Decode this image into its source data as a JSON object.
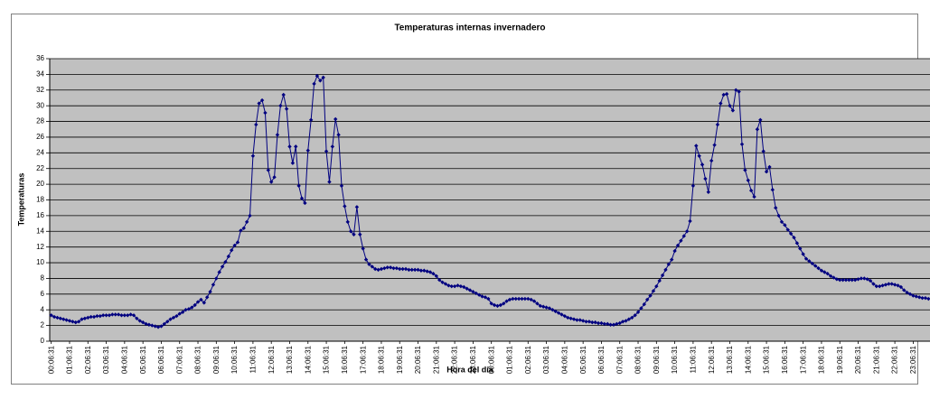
{
  "chart_data": {
    "type": "line",
    "title": "Temperaturas internas invernadero",
    "x_label": "Hora del día",
    "y_label": "Temperaturas",
    "color": "#000080",
    "plot_background": "#c0c0c0",
    "grid": true,
    "ylim": [
      0,
      36
    ],
    "yticks": [
      0,
      2,
      4,
      6,
      8,
      10,
      12,
      14,
      16,
      18,
      20,
      22,
      24,
      26,
      28,
      30,
      32,
      34,
      36
    ],
    "categories": [
      "00:06:31",
      null,
      null,
      null,
      null,
      null,
      "01:06:31",
      null,
      null,
      null,
      null,
      null,
      "02:06:31",
      null,
      null,
      null,
      null,
      null,
      "03:06:31",
      null,
      null,
      null,
      null,
      null,
      "04:06:31",
      null,
      null,
      null,
      null,
      null,
      "05:06:31",
      null,
      null,
      null,
      null,
      null,
      "06:06:31",
      null,
      null,
      null,
      null,
      null,
      "07:06:31",
      null,
      null,
      null,
      null,
      null,
      "08:06:31",
      null,
      null,
      null,
      null,
      null,
      "09:06:31",
      null,
      null,
      null,
      null,
      null,
      "10:06:31",
      null,
      null,
      null,
      null,
      null,
      "11:06:31",
      null,
      null,
      null,
      null,
      null,
      "12:06:31",
      null,
      null,
      null,
      null,
      null,
      "13:06:31",
      null,
      null,
      null,
      null,
      null,
      "14:06:31",
      null,
      null,
      null,
      null,
      null,
      "15:06:31",
      null,
      null,
      null,
      null,
      null,
      "16:06:31",
      null,
      null,
      null,
      null,
      null,
      "17:06:31",
      null,
      null,
      null,
      null,
      null,
      "18:06:31",
      null,
      null,
      null,
      null,
      null,
      "19:06:31",
      null,
      null,
      null,
      null,
      null,
      "20:06:31",
      null,
      null,
      null,
      null,
      null,
      "21:06:31",
      null,
      null,
      null,
      null,
      null,
      "22:06:31",
      null,
      null,
      null,
      null,
      null,
      "23:06:31",
      null,
      null,
      null,
      null,
      null,
      "00:06:31",
      null,
      null,
      null,
      null,
      null,
      "01:06:31",
      null,
      null,
      null,
      null,
      null,
      "02:06:31",
      null,
      null,
      null,
      null,
      null,
      "03:06:31",
      null,
      null,
      null,
      null,
      null,
      "04:06:31",
      null,
      null,
      null,
      null,
      null,
      "05:06:31",
      null,
      null,
      null,
      null,
      null,
      "06:06:31",
      null,
      null,
      null,
      null,
      null,
      "07:06:31",
      null,
      null,
      null,
      null,
      null,
      "08:06:31",
      null,
      null,
      null,
      null,
      null,
      "09:06:31",
      null,
      null,
      null,
      null,
      null,
      "10:06:31",
      null,
      null,
      null,
      null,
      null,
      "11:06:31",
      null,
      null,
      null,
      null,
      null,
      "12:06:31",
      null,
      null,
      null,
      null,
      null,
      "13:06:31",
      null,
      null,
      null,
      null,
      null,
      "14:06:31",
      null,
      null,
      null,
      null,
      null,
      "15:06:31",
      null,
      null,
      null,
      null,
      null,
      "16:06:31",
      null,
      null,
      null,
      null,
      null,
      "17:06:31",
      null,
      null,
      null,
      null,
      null,
      "18:06:31",
      null,
      null,
      null,
      null,
      null,
      "19:06:31",
      null,
      null,
      null,
      null,
      null,
      "20:06:31",
      null,
      null,
      null,
      null,
      null,
      "21:06:31",
      null,
      null,
      null,
      null,
      null,
      "22:06:31",
      null,
      null,
      null,
      null,
      null,
      "23:06:31",
      null,
      null,
      null,
      null,
      null
    ],
    "values": [
      3.3,
      3.1,
      3.0,
      2.9,
      2.8,
      2.7,
      2.6,
      2.5,
      2.4,
      2.5,
      2.8,
      2.9,
      3.0,
      3.1,
      3.1,
      3.2,
      3.2,
      3.3,
      3.3,
      3.3,
      3.4,
      3.4,
      3.4,
      3.3,
      3.3,
      3.3,
      3.4,
      3.3,
      2.9,
      2.6,
      2.4,
      2.2,
      2.1,
      2.0,
      1.9,
      1.8,
      1.9,
      2.2,
      2.5,
      2.8,
      3.0,
      3.2,
      3.5,
      3.7,
      4.0,
      4.1,
      4.3,
      4.6,
      5.0,
      5.3,
      4.9,
      5.6,
      6.3,
      7.2,
      8.0,
      8.8,
      9.5,
      10.1,
      10.8,
      11.6,
      12.2,
      12.6,
      14.1,
      14.4,
      15.2,
      16.0,
      23.6,
      27.6,
      30.3,
      30.7,
      29.1,
      21.8,
      20.3,
      20.9,
      26.3,
      30.0,
      31.4,
      29.6,
      24.8,
      22.7,
      24.8,
      19.8,
      18.2,
      17.6,
      24.3,
      28.2,
      32.8,
      33.8,
      33.2,
      33.6,
      24.2,
      20.3,
      24.8,
      28.3,
      26.3,
      19.8,
      17.2,
      15.2,
      14.0,
      13.6,
      17.1,
      13.6,
      11.8,
      10.4,
      9.8,
      9.5,
      9.2,
      9.1,
      9.2,
      9.3,
      9.4,
      9.4,
      9.3,
      9.3,
      9.2,
      9.2,
      9.2,
      9.1,
      9.1,
      9.1,
      9.1,
      9.0,
      9.0,
      8.9,
      8.8,
      8.6,
      8.3,
      7.8,
      7.5,
      7.3,
      7.1,
      7.0,
      7.0,
      7.1,
      7.0,
      6.9,
      6.7,
      6.5,
      6.3,
      6.1,
      5.9,
      5.7,
      5.6,
      5.4,
      4.8,
      4.6,
      4.5,
      4.6,
      4.8,
      5.1,
      5.3,
      5.4,
      5.4,
      5.4,
      5.4,
      5.4,
      5.4,
      5.3,
      5.1,
      4.8,
      4.5,
      4.4,
      4.3,
      4.2,
      4.0,
      3.8,
      3.6,
      3.4,
      3.2,
      3.0,
      2.9,
      2.8,
      2.7,
      2.7,
      2.6,
      2.5,
      2.5,
      2.4,
      2.4,
      2.3,
      2.3,
      2.2,
      2.2,
      2.1,
      2.1,
      2.2,
      2.3,
      2.5,
      2.6,
      2.8,
      3.0,
      3.3,
      3.7,
      4.2,
      4.7,
      5.3,
      5.8,
      6.4,
      7.0,
      7.7,
      8.4,
      9.1,
      9.8,
      10.4,
      11.5,
      12.2,
      12.8,
      13.4,
      14.0,
      15.3,
      19.8,
      24.9,
      23.6,
      22.5,
      20.7,
      19.0,
      23.0,
      25.0,
      27.6,
      30.3,
      31.4,
      31.5,
      30.0,
      29.4,
      32.0,
      31.8,
      25.1,
      21.8,
      20.5,
      19.2,
      18.4,
      27.0,
      28.2,
      24.2,
      21.6,
      22.2,
      19.3,
      17.0,
      16.0,
      15.2,
      14.8,
      14.2,
      13.7,
      13.2,
      12.5,
      11.8,
      11.1,
      10.5,
      10.2,
      9.9,
      9.6,
      9.3,
      9.0,
      8.8,
      8.6,
      8.3,
      8.1,
      7.9,
      7.8,
      7.8,
      7.8,
      7.8,
      7.8,
      7.8,
      7.9,
      8.0,
      8.0,
      7.9,
      7.7,
      7.3,
      7.0,
      7.0,
      7.1,
      7.2,
      7.3,
      7.3,
      7.2,
      7.1,
      6.9,
      6.5,
      6.2,
      6.0,
      5.8,
      5.7,
      5.6,
      5.5,
      5.5,
      5.4
    ]
  }
}
